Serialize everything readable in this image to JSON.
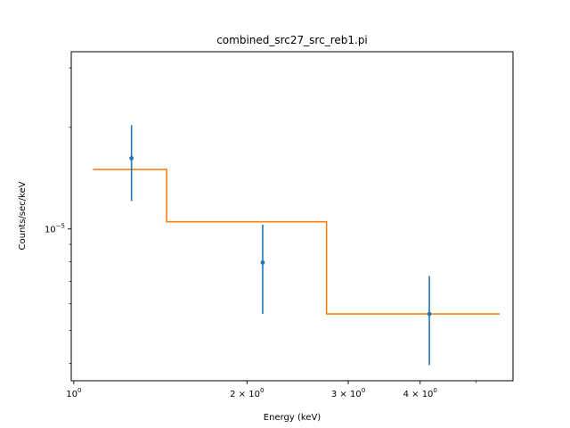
{
  "chart_data": {
    "type": "scatter",
    "title": "combined_src27_src_reb1.pi",
    "xlabel": "Energy (keV)",
    "ylabel": "Counts/sec/keV",
    "x_scale": "log",
    "y_scale": "log",
    "xlim": [
      0.99,
      5.8
    ],
    "ylim": [
      3.55e-06,
      3.35e-05
    ],
    "x_ticks": [
      {
        "value": 1.0,
        "label": "10",
        "sup": "0"
      },
      {
        "value": 2.0,
        "label": "2 × 10",
        "sup": "0"
      },
      {
        "value": 3.0,
        "label": "3 × 10",
        "sup": "0"
      },
      {
        "value": 4.0,
        "label": "4 × 10",
        "sup": "0"
      }
    ],
    "x_minor_ticks": [
      5.0
    ],
    "y_ticks": [
      {
        "value": 1e-05,
        "label": "10",
        "sup": "−5"
      }
    ],
    "data_series": {
      "color": "#1f77b4",
      "points": [
        {
          "x": 1.26,
          "y": 1.62e-05,
          "y_low": 1.21e-05,
          "y_high": 2.03e-05
        },
        {
          "x": 2.13,
          "y": 7.95e-06,
          "y_low": 5.6e-06,
          "y_high": 1.03e-05
        },
        {
          "x": 4.15,
          "y": 5.6e-06,
          "y_low": 3.95e-06,
          "y_high": 7.25e-06
        }
      ]
    },
    "model_series": {
      "color": "#ff7f0e",
      "steps": [
        {
          "x0": 1.08,
          "x1": 1.45,
          "y": 1.5e-05
        },
        {
          "x0": 1.45,
          "x1": 2.75,
          "y": 1.05e-05
        },
        {
          "x0": 2.75,
          "x1": 5.5,
          "y": 5.6e-06
        }
      ]
    },
    "grid": false,
    "legend": "none"
  }
}
